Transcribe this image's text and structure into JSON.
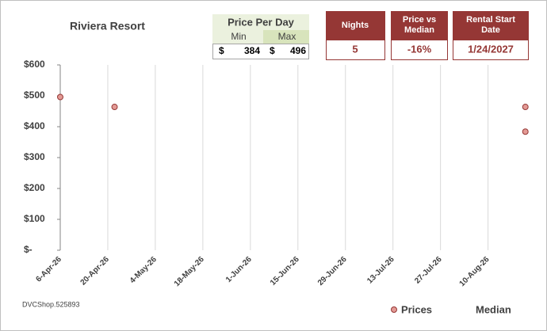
{
  "chart_data": {
    "type": "scatter",
    "title": "Riviera Resort",
    "series": [
      {
        "name": "Prices",
        "color": "#e39a95",
        "x": [
          "6-Apr-26",
          "22-Apr-26",
          "21-Aug-26",
          "21-Aug-26"
        ],
        "values": [
          496,
          464,
          464,
          384
        ]
      },
      {
        "name": "Median",
        "color": "#953735",
        "x": [
          "6-Apr-26",
          "22-Apr-26",
          "21-Aug-26",
          "21-Aug-26"
        ],
        "values": [
          null,
          null,
          null,
          null
        ]
      }
    ],
    "xlim": [
      "6-Apr-26",
      "22-Aug-26"
    ],
    "xticks": [
      "6-Apr-26",
      "20-Apr-26",
      "4-May-26",
      "18-May-26",
      "1-Jun-26",
      "15-Jun-26",
      "29-Jun-26",
      "13-Jul-26",
      "27-Jul-26",
      "10-Aug-26"
    ],
    "ylim": [
      0,
      600
    ],
    "yticks": [
      {
        "value": 0,
        "label": "$-"
      },
      {
        "value": 100,
        "label": "$100"
      },
      {
        "value": 200,
        "label": "$200"
      },
      {
        "value": 300,
        "label": "$300"
      },
      {
        "value": 400,
        "label": "$400"
      },
      {
        "value": 500,
        "label": "$500"
      },
      {
        "value": 600,
        "label": "$600"
      }
    ],
    "grid": "x",
    "legend": "bottom-right"
  },
  "price_per_day": {
    "title": "Price Per Day",
    "min_label": "Min",
    "max_label": "Max",
    "currency": "$",
    "min": 384,
    "max": 496
  },
  "nights": {
    "label": "Nights",
    "value": 5
  },
  "price_vs_median": {
    "label": "Price vs Median",
    "value": "-16%"
  },
  "rental_start": {
    "label": "Rental Start Date",
    "value": "1/24/2027"
  },
  "footnote": "DVCShop.525893"
}
